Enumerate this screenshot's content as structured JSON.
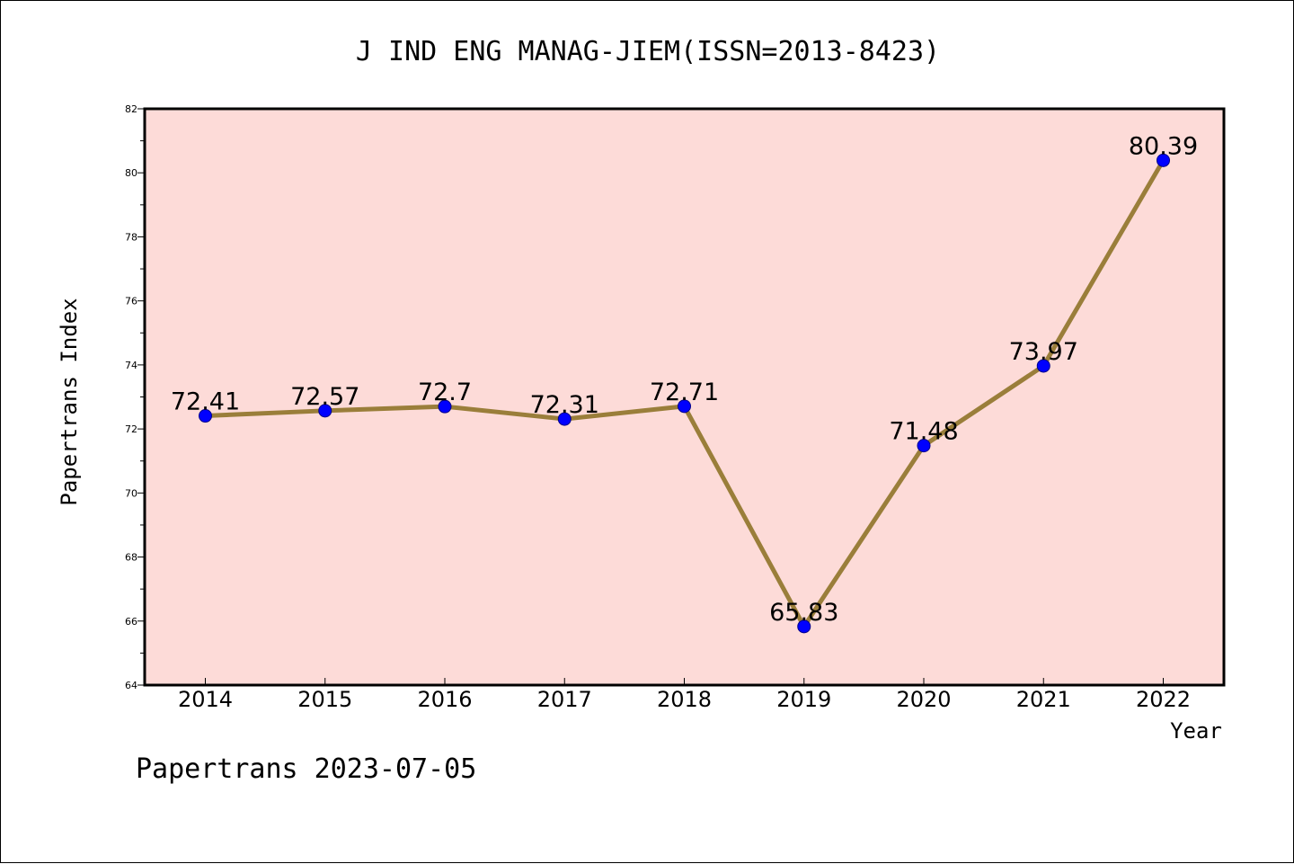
{
  "chart_data": {
    "type": "line",
    "title": "J IND ENG MANAG-JIEM(ISSN=2013-8423)",
    "xlabel": "Year",
    "ylabel": "Papertrans Index",
    "footer": "Papertrans 2023-07-05",
    "categories": [
      "2014",
      "2015",
      "2016",
      "2017",
      "2018",
      "2019",
      "2020",
      "2021",
      "2022"
    ],
    "values": [
      72.41,
      72.57,
      72.7,
      72.31,
      72.71,
      65.83,
      71.48,
      73.97,
      80.39
    ],
    "data_labels": [
      "72.41",
      "72.57",
      "72.7",
      "72.31",
      "72.71",
      "65.83",
      "71.48",
      "73.97",
      "80.39"
    ],
    "ylim": [
      64,
      82
    ],
    "yticks": [
      "64",
      "66",
      "68",
      "70",
      "72",
      "74",
      "76",
      "78",
      "80",
      "82"
    ],
    "grid": false,
    "colors": {
      "plot_background": "#fddbd8",
      "line": "#9a7e3a",
      "marker": "#0000ff",
      "marker_edge": "#00008b"
    }
  }
}
